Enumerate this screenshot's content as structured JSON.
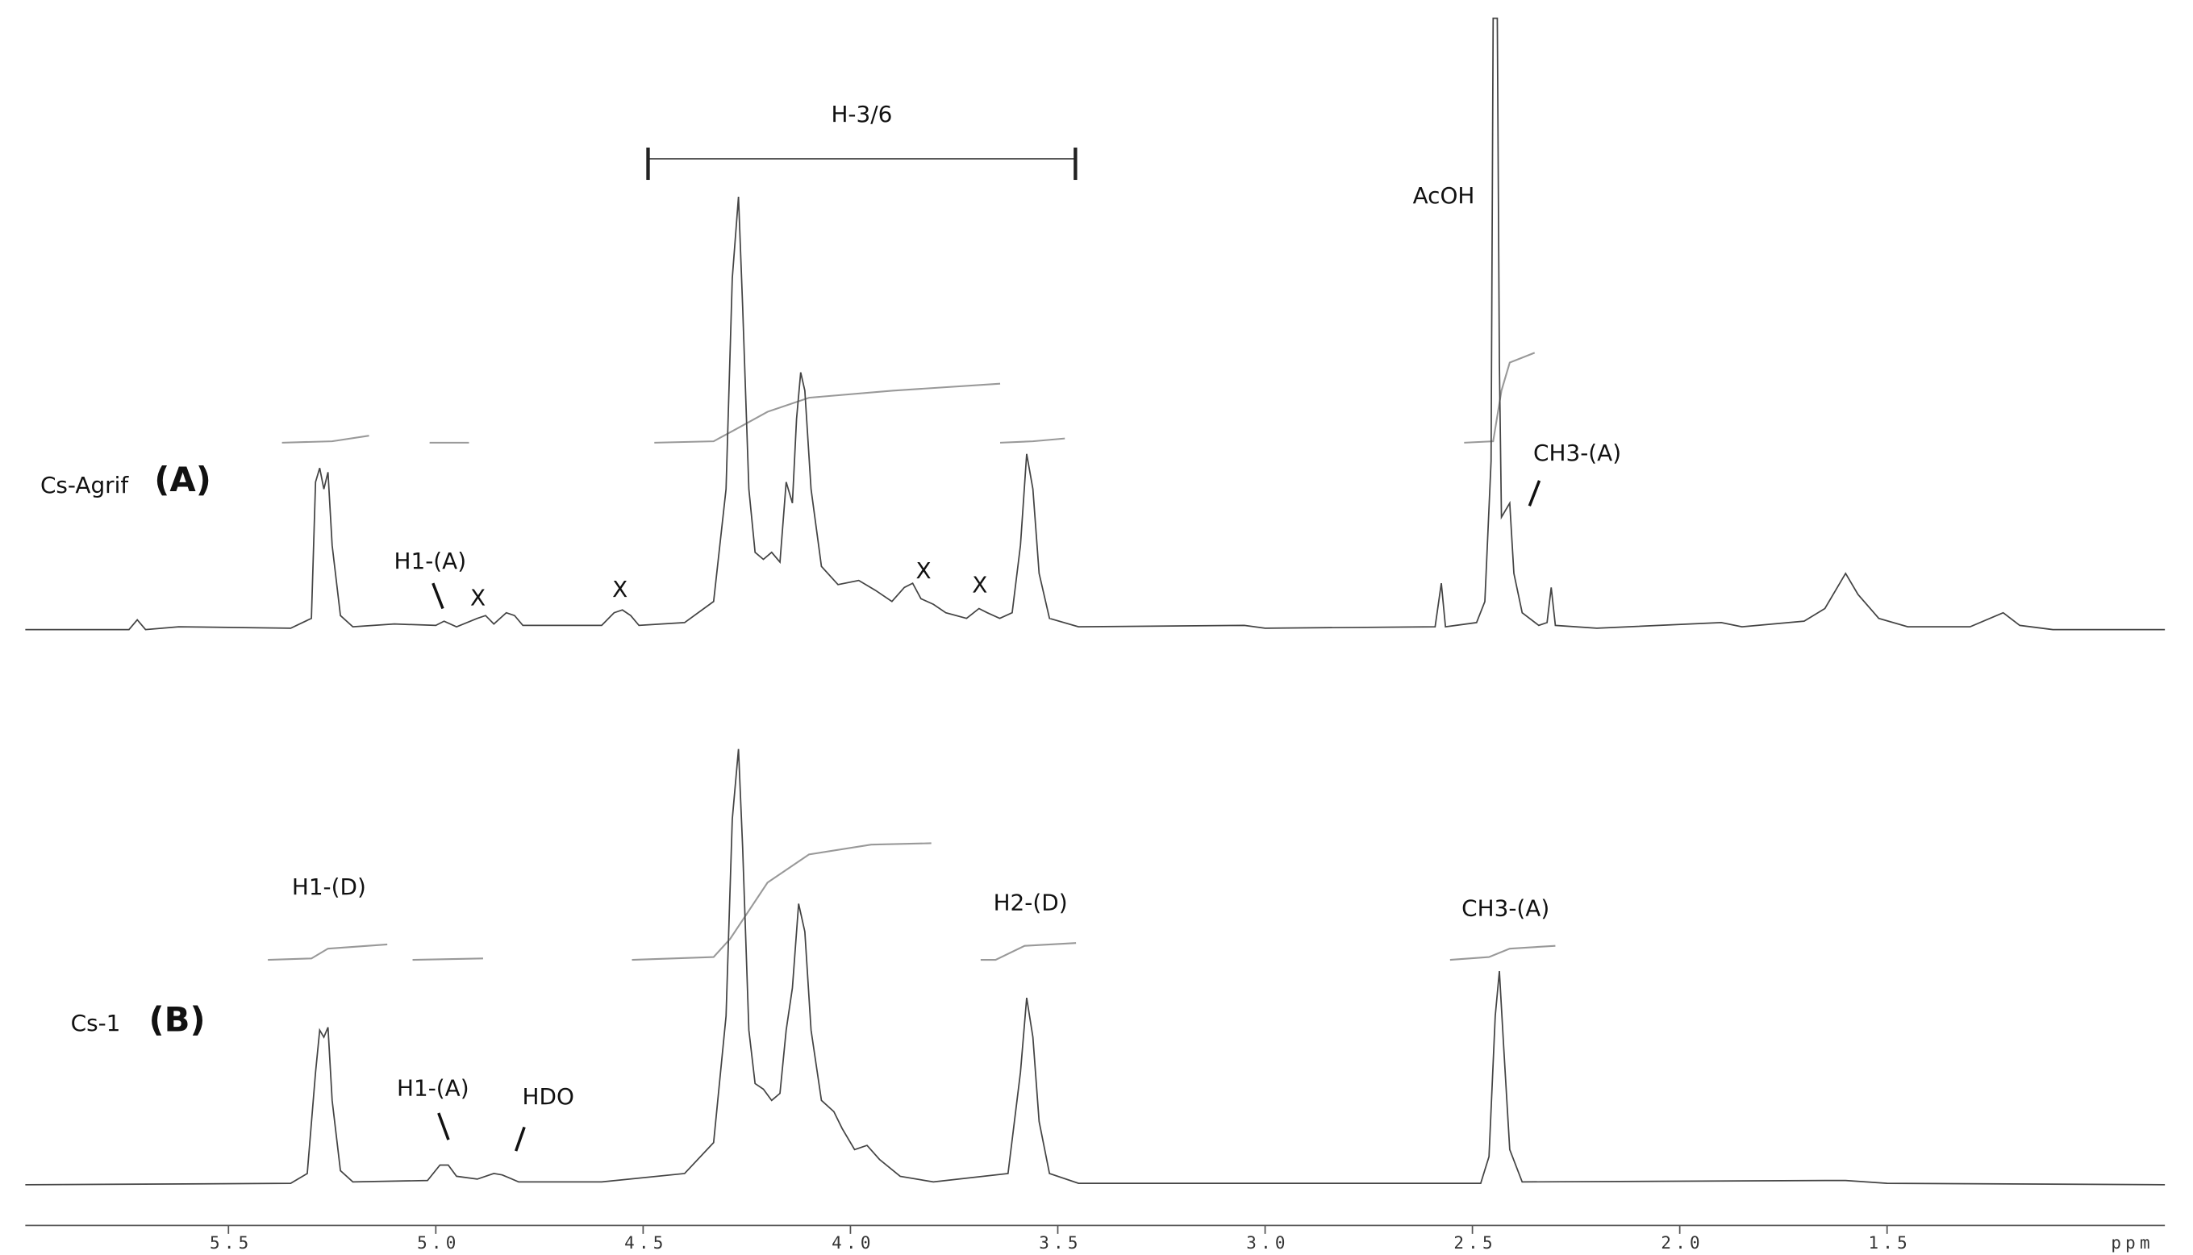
{
  "chart_data": [
    {
      "type": "line",
      "sample": "Cs-Agrif",
      "panel": "(A)",
      "annotations": [
        "H-3/6",
        "AcOH",
        "CH3-(A)",
        "H1-(A)",
        "X",
        "X",
        "X",
        "X"
      ],
      "xlim": [
        5.99,
        0.83
      ],
      "ylim": [
        0,
        440
      ],
      "color": "#444",
      "x": [
        5.99,
        5.74,
        5.72,
        5.7,
        5.62,
        5.35,
        5.3,
        5.29,
        5.28,
        5.27,
        5.26,
        5.25,
        5.23,
        5.2,
        5.1,
        5.0,
        4.98,
        4.95,
        4.9,
        4.88,
        4.86,
        4.83,
        4.81,
        4.79,
        4.6,
        4.57,
        4.55,
        4.53,
        4.51,
        4.4,
        4.33,
        4.3,
        4.285,
        4.27,
        4.26,
        4.245,
        4.23,
        4.21,
        4.19,
        4.17,
        4.155,
        4.14,
        4.13,
        4.12,
        4.11,
        4.095,
        4.07,
        4.03,
        3.98,
        3.94,
        3.9,
        3.87,
        3.85,
        3.83,
        3.8,
        3.77,
        3.72,
        3.69,
        3.67,
        3.64,
        3.61,
        3.59,
        3.575,
        3.56,
        3.545,
        3.52,
        3.45,
        3.05,
        3.0,
        2.59,
        2.575,
        2.565,
        2.49,
        2.47,
        2.455,
        2.45,
        2.44,
        2.435,
        2.43,
        2.41,
        2.4,
        2.38,
        2.34,
        2.32,
        2.31,
        2.3,
        2.2,
        1.9,
        1.85,
        1.7,
        1.65,
        1.6,
        1.57,
        1.52,
        1.45,
        1.3,
        1.22,
        1.18,
        1.1,
        0.83
      ],
      "values": [
        0,
        0,
        7,
        0,
        2,
        1,
        8,
        105,
        115,
        100,
        112,
        60,
        10,
        2,
        4,
        3,
        6,
        2,
        8,
        10,
        4,
        12,
        10,
        3,
        3,
        12,
        14,
        10,
        3,
        5,
        20,
        100,
        250,
        308,
        230,
        100,
        55,
        50,
        55,
        48,
        105,
        90,
        150,
        183,
        170,
        100,
        45,
        32,
        35,
        28,
        20,
        30,
        33,
        22,
        18,
        12,
        8,
        15,
        12,
        8,
        12,
        60,
        125,
        100,
        40,
        8,
        2,
        3,
        1,
        2,
        33,
        2,
        5,
        20,
        120,
        435,
        435,
        190,
        80,
        90,
        40,
        12,
        3,
        5,
        30,
        3,
        1,
        5,
        2,
        6,
        15,
        40,
        25,
        8,
        2,
        2,
        12,
        3,
        0,
        0
      ],
      "integrals": [
        {
          "x": [
            5.371,
            5.25,
            5.161
          ],
          "values": [
            133,
            134,
            138
          ]
        },
        {
          "x": [
            5.015,
            4.92
          ],
          "values": [
            133,
            133
          ]
        },
        {
          "x": [
            4.473,
            4.33,
            4.28,
            4.2,
            4.1,
            3.9,
            3.639
          ],
          "values": [
            133,
            134,
            142,
            155,
            165,
            170,
            175
          ]
        },
        {
          "x": [
            3.639,
            3.56,
            3.483
          ],
          "values": [
            133,
            134,
            136
          ]
        },
        {
          "x": [
            2.52,
            2.45,
            2.43,
            2.41,
            2.35
          ],
          "values": [
            133,
            134,
            170,
            190,
            197
          ]
        }
      ]
    },
    {
      "type": "line",
      "sample": "Cs-1",
      "panel": "(B)",
      "annotations": [
        "H1-(D)",
        "H2-(D)",
        "CH3-(A)",
        "H1-(A)",
        "HDO"
      ],
      "xlim": [
        5.99,
        0.83
      ],
      "ylim": [
        0,
        320
      ],
      "color": "#444",
      "xticks": [
        5.5,
        {
          "value": 5,
          "label": "5.0"
        },
        4.5,
        {
          "value": 4,
          "label": "4.0"
        },
        3.5,
        {
          "value": 3,
          "label": "3.0"
        },
        2.5,
        {
          "value": 2,
          "label": "2.0"
        },
        1.5
      ],
      "x_label": "ppm",
      "x": [
        5.99,
        5.35,
        5.31,
        5.29,
        5.28,
        5.27,
        5.26,
        5.25,
        5.23,
        5.2,
        5.02,
        4.99,
        4.97,
        4.95,
        4.9,
        4.86,
        4.84,
        4.8,
        4.6,
        4.4,
        4.33,
        4.3,
        4.285,
        4.27,
        4.26,
        4.245,
        4.23,
        4.21,
        4.19,
        4.17,
        4.155,
        4.14,
        4.125,
        4.11,
        4.095,
        4.07,
        4.04,
        4.02,
        3.99,
        3.96,
        3.93,
        3.88,
        3.8,
        3.62,
        3.59,
        3.575,
        3.56,
        3.545,
        3.52,
        3.45,
        2.48,
        2.46,
        2.445,
        2.435,
        2.425,
        2.41,
        2.38,
        1.65,
        1.6,
        1.5,
        0.83
      ],
      "values": [
        0,
        1,
        8,
        80,
        110,
        105,
        112,
        60,
        10,
        2,
        3,
        14,
        14,
        6,
        4,
        8,
        7,
        2,
        2,
        8,
        30,
        120,
        260,
        310,
        240,
        110,
        72,
        68,
        60,
        65,
        110,
        140,
        200,
        180,
        110,
        60,
        52,
        40,
        25,
        28,
        18,
        6,
        2,
        8,
        80,
        133,
        105,
        45,
        8,
        1,
        1,
        20,
        120,
        152,
        100,
        25,
        2,
        3,
        3,
        1,
        0
      ],
      "integrals": [
        {
          "x": [
            5.405,
            5.3,
            5.26,
            5.117
          ],
          "values": [
            160,
            161,
            168,
            171
          ]
        },
        {
          "x": [
            5.056,
            4.886
          ],
          "values": [
            160,
            161
          ]
        },
        {
          "x": [
            4.527,
            4.33,
            4.29,
            4.2,
            4.1,
            3.95,
            3.805
          ],
          "values": [
            160,
            162,
            175,
            215,
            235,
            242,
            243
          ]
        },
        {
          "x": [
            3.686,
            3.65,
            3.58,
            3.456
          ],
          "values": [
            160,
            160,
            170,
            172
          ]
        },
        {
          "x": [
            2.554,
            2.46,
            2.41,
            2.3
          ],
          "values": [
            160,
            162,
            168,
            170
          ]
        }
      ]
    }
  ]
}
